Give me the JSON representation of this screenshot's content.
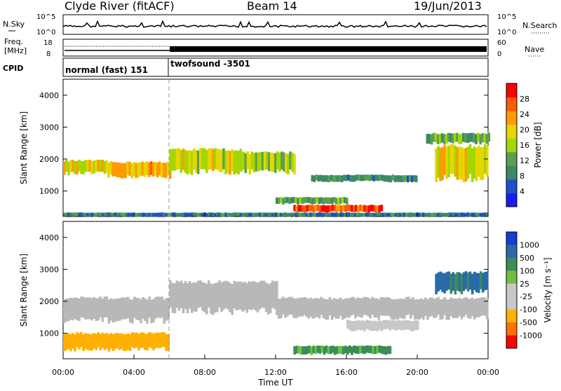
{
  "header": {
    "station": "Clyde River (fitACF)",
    "beam": "Beam 14",
    "date": "19/Jun/2013"
  },
  "strips": {
    "nsky": {
      "left_label": "N.Sky",
      "right_label": "N.Search",
      "left_ticks": [
        "10^5",
        "10^0"
      ],
      "right_ticks": [
        "10^5",
        "10^0"
      ]
    },
    "freq": {
      "left_label_1": "Freq.",
      "left_label_2": "[MHz]",
      "right_label": "Nave",
      "left_ticks": [
        "18",
        "8"
      ],
      "right_ticks": [
        "60",
        "0"
      ]
    },
    "cpid": {
      "label": "CPID",
      "programs": [
        "normal (fast) 151",
        "twofsound -3501"
      ]
    }
  },
  "colors": {
    "power_scale": [
      "#1a1aff",
      "#2050c8",
      "#3a8a6a",
      "#5aa050",
      "#a6d600",
      "#e6d600",
      "#ff9a00",
      "#ff5a00",
      "#ff0000"
    ],
    "velocity_scale": [
      "#1a3bd0",
      "#2a6aa8",
      "#3c8c5a",
      "#70c040",
      "#c8c8c8",
      "#c8c8c8",
      "#ffb000",
      "#ff7000",
      "#ff0000"
    ],
    "ground_scatter": "#b8b8b8"
  },
  "chart_data": [
    {
      "type": "heatmap",
      "panel": "power",
      "ylabel": "Slant Range [km]",
      "yticks": [
        "1000",
        "2000",
        "3000",
        "4000"
      ],
      "ylim": [
        200,
        4500
      ],
      "xlim": [
        0,
        24
      ],
      "colorbar": {
        "label": "Power [dB]",
        "ticks": [
          "4",
          "8",
          "12",
          "16",
          "20",
          "24",
          "28"
        ],
        "range": [
          0,
          32
        ]
      },
      "bands": [
        {
          "t": [
            0,
            2.5
          ],
          "r": [
            1550,
            1950
          ],
          "v": 20
        },
        {
          "t": [
            2.5,
            6
          ],
          "r": [
            1450,
            1900
          ],
          "v": 22
        },
        {
          "t": [
            6,
            10
          ],
          "r": [
            1600,
            2300
          ],
          "v": 18
        },
        {
          "t": [
            10,
            13
          ],
          "r": [
            1600,
            2200
          ],
          "v": 16
        },
        {
          "t": [
            13,
            18
          ],
          "r": [
            350,
            560
          ],
          "v": 28
        },
        {
          "t": [
            12,
            16
          ],
          "r": [
            600,
            800
          ],
          "v": 12
        },
        {
          "t": [
            14,
            20
          ],
          "r": [
            1300,
            1500
          ],
          "v": 10
        },
        {
          "t": [
            21,
            24
          ],
          "r": [
            1400,
            2400
          ],
          "v": 18
        },
        {
          "t": [
            20.5,
            24
          ],
          "r": [
            2500,
            2800
          ],
          "v": 12
        },
        {
          "t": [
            0,
            24
          ],
          "r": [
            200,
            320
          ],
          "v": 8
        }
      ]
    },
    {
      "type": "heatmap",
      "panel": "velocity",
      "xlabel": "Time UT",
      "ylabel": "Slant Range [km]",
      "xticks": [
        "00:00",
        "04:00",
        "08:00",
        "12:00",
        "16:00",
        "20:00",
        "00:00"
      ],
      "yticks": [
        "1000",
        "2000",
        "3000",
        "4000"
      ],
      "ylim": [
        200,
        4500
      ],
      "xlim": [
        0,
        24
      ],
      "colorbar": {
        "label": "Velocity [m s⁻¹]",
        "ticks": [
          "1000",
          "500",
          "100",
          "25",
          "-25",
          "-100",
          "-500",
          "-1000"
        ]
      },
      "bands": [
        {
          "t": [
            0,
            6
          ],
          "r": [
            1400,
            2100
          ],
          "v": 0
        },
        {
          "t": [
            6,
            12
          ],
          "r": [
            1700,
            2600
          ],
          "v": 0
        },
        {
          "t": [
            12,
            24
          ],
          "r": [
            1500,
            2100
          ],
          "v": 0
        },
        {
          "t": [
            13,
            18.5
          ],
          "r": [
            350,
            600
          ],
          "v": 150
        },
        {
          "t": [
            21,
            24
          ],
          "r": [
            2300,
            2900
          ],
          "v": 600
        },
        {
          "t": [
            0,
            6
          ],
          "r": [
            500,
            1000
          ],
          "v": -200
        },
        {
          "t": [
            16,
            20
          ],
          "r": [
            1100,
            1400
          ],
          "v": -50
        }
      ]
    }
  ]
}
